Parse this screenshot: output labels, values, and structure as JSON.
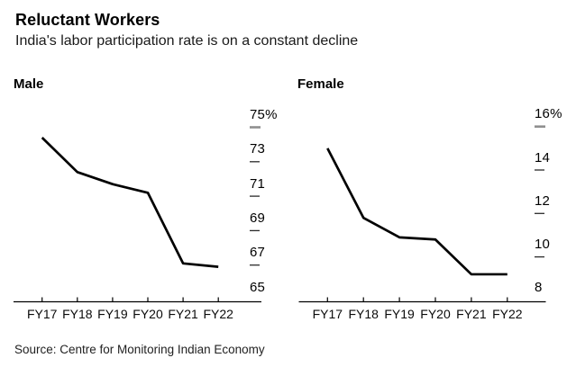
{
  "header": {
    "title": "Reluctant Workers",
    "subtitle": "India's labor participation rate is on a constant decline"
  },
  "source_note": "Source: Centre for Monitoring Indian Economy",
  "colors": {
    "line": "#000000",
    "axis": "#000000",
    "top_tick_dash": "#8f8f8f",
    "tick_dash": "#2b2b2b",
    "text": "#000000"
  },
  "chart_data": [
    {
      "type": "line",
      "title": "Male",
      "categories": [
        "FY17",
        "FY18",
        "FY19",
        "FY20",
        "FY21",
        "FY22"
      ],
      "values": [
        74.4,
        72.4,
        71.7,
        71.2,
        67.1,
        66.9
      ],
      "unit": "%",
      "ylim": [
        65,
        75
      ],
      "y_axis_side": "right",
      "grid": false,
      "yticks": [
        {
          "label": "75%",
          "value": 75,
          "dash": true
        },
        {
          "label": "73",
          "value": 73,
          "dash": true
        },
        {
          "label": "71",
          "value": 71,
          "dash": true
        },
        {
          "label": "69",
          "value": 69,
          "dash": true
        },
        {
          "label": "67",
          "value": 67,
          "dash": true
        },
        {
          "label": "65",
          "value": 65,
          "dash": false
        }
      ]
    },
    {
      "type": "line",
      "title": "Female",
      "categories": [
        "FY17",
        "FY18",
        "FY19",
        "FY20",
        "FY21",
        "FY22"
      ],
      "values": [
        15.0,
        11.8,
        10.9,
        10.8,
        9.2,
        9.2
      ],
      "unit": "%",
      "ylim": [
        8,
        16
      ],
      "y_axis_side": "right",
      "grid": false,
      "yticks": [
        {
          "label": "16%",
          "value": 16,
          "dash": true
        },
        {
          "label": "14",
          "value": 14,
          "dash": true
        },
        {
          "label": "12",
          "value": 12,
          "dash": true
        },
        {
          "label": "10",
          "value": 10,
          "dash": true
        },
        {
          "label": "8",
          "value": 8,
          "dash": false
        }
      ]
    }
  ]
}
